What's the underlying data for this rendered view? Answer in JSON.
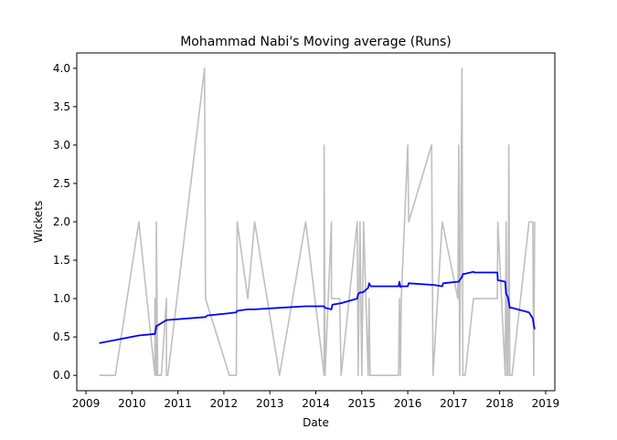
{
  "chart_data": {
    "type": "line",
    "title": "Mohammad Nabi's Moving average (Runs)",
    "xlabel": "Date",
    "ylabel": "Wickets",
    "xlim": [
      2008.8,
      2019.2
    ],
    "ylim": [
      -0.2,
      4.2
    ],
    "x_ticks": [
      2009,
      2010,
      2011,
      2012,
      2013,
      2014,
      2015,
      2016,
      2017,
      2018,
      2019
    ],
    "y_ticks": [
      0.0,
      0.5,
      1.0,
      1.5,
      2.0,
      2.5,
      3.0,
      3.5,
      4.0
    ],
    "y_tick_labels": [
      "0.0",
      "0.5",
      "1.0",
      "1.5",
      "2.0",
      "2.5",
      "3.0",
      "3.5",
      "4.0"
    ],
    "grid": false,
    "series": [
      {
        "role": "raw",
        "color": "#bfbfbf",
        "x": [
          2009.29,
          2009.64,
          2010.15,
          2010.5,
          2010.5,
          2010.53,
          2010.53,
          2010.56,
          2010.64,
          2010.75,
          2010.75,
          2010.78,
          2011.58,
          2011.6,
          2012.12,
          2012.27,
          2012.29,
          2012.52,
          2012.67,
          2013.21,
          2013.78,
          2014.18,
          2014.18,
          2014.2,
          2014.34,
          2014.34,
          2014.36,
          2014.52,
          2014.55,
          2014.9,
          2014.92,
          2014.96,
          2015.0,
          2015.02,
          2015.04,
          2015.14,
          2015.16,
          2015.18,
          2015.2,
          2015.8,
          2015.82,
          2015.84,
          2015.86,
          2016.0,
          2016.02,
          2016.52,
          2016.55,
          2016.75,
          2017.09,
          2017.11,
          2017.13,
          2017.18,
          2017.2,
          2017.22,
          2017.25,
          2017.43,
          2017.45,
          2017.95,
          2017.96,
          2018.12,
          2018.14,
          2018.16,
          2018.18,
          2018.2,
          2018.22,
          2018.27,
          2018.64,
          2018.72,
          2018.74,
          2018.76
        ],
        "y": [
          0,
          0,
          2,
          0,
          1,
          0,
          2,
          0,
          0,
          1,
          0,
          0,
          4,
          1,
          0,
          0,
          2,
          1,
          2,
          0,
          2,
          0,
          3,
          0,
          2,
          1,
          1,
          1,
          0,
          2,
          0,
          2,
          0,
          1,
          2,
          0,
          1,
          0,
          0,
          0,
          1,
          0,
          1,
          3,
          2,
          3,
          0,
          2,
          1,
          3,
          0,
          4,
          0,
          0,
          0,
          1,
          1,
          1,
          2,
          0,
          2,
          0,
          0,
          3,
          0,
          0,
          2,
          2,
          0,
          2
        ]
      },
      {
        "role": "moving-average",
        "color": "#0000ff",
        "x": [
          2009.29,
          2010.15,
          2010.5,
          2010.53,
          2010.64,
          2010.75,
          2011.6,
          2011.64,
          2012.12,
          2012.27,
          2012.29,
          2012.52,
          2012.67,
          2013.21,
          2013.78,
          2014.18,
          2014.2,
          2014.34,
          2014.36,
          2014.55,
          2014.9,
          2014.92,
          2014.96,
          2015.02,
          2015.14,
          2015.16,
          2015.2,
          2015.8,
          2015.82,
          2015.84,
          2015.86,
          2016.0,
          2016.02,
          2016.52,
          2016.55,
          2016.75,
          2016.77,
          2017.09,
          2017.11,
          2017.13,
          2017.18,
          2017.2,
          2017.22,
          2017.43,
          2017.45,
          2017.95,
          2017.96,
          2018.12,
          2018.14,
          2018.18,
          2018.22,
          2018.27,
          2018.64,
          2018.72,
          2018.74,
          2018.76
        ],
        "y": [
          0.42,
          0.52,
          0.54,
          0.64,
          0.68,
          0.72,
          0.76,
          0.78,
          0.81,
          0.82,
          0.84,
          0.86,
          0.86,
          0.88,
          0.9,
          0.9,
          0.88,
          0.86,
          0.92,
          0.94,
          1.0,
          1.06,
          1.08,
          1.08,
          1.14,
          1.2,
          1.16,
          1.16,
          1.22,
          1.15,
          1.16,
          1.16,
          1.2,
          1.18,
          1.18,
          1.16,
          1.2,
          1.22,
          1.22,
          1.24,
          1.28,
          1.32,
          1.32,
          1.35,
          1.34,
          1.34,
          1.24,
          1.22,
          1.06,
          1.02,
          0.88,
          0.88,
          0.82,
          0.74,
          0.66,
          0.6
        ]
      }
    ]
  }
}
